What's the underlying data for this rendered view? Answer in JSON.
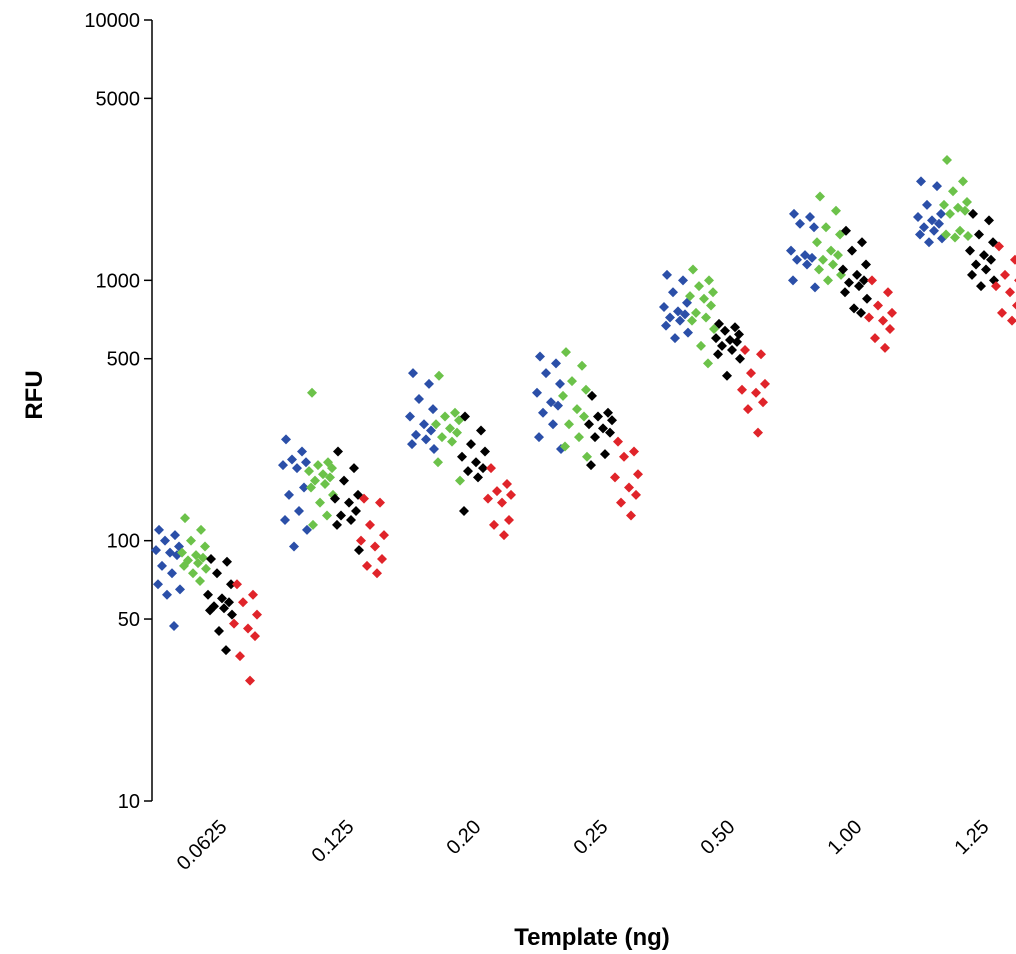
{
  "chart_data": {
    "type": "scatter",
    "title": "",
    "xlabel": "Template (ng)",
    "ylabel": "RFU",
    "yscale": "log",
    "ylim": [
      10,
      10000
    ],
    "yticks": [
      "10",
      "50",
      "100",
      "500",
      "1000",
      "5000",
      "10000"
    ],
    "categories": [
      "0.0625",
      "0.125",
      "0.20",
      "0.25",
      "0.50",
      "1.00",
      "1.25"
    ],
    "grid": false,
    "legend": "none",
    "marker": "diamond",
    "series": [
      {
        "color": "#2b4fa8",
        "values": [
          [
            110,
            105,
            100,
            95,
            92,
            90,
            88,
            80,
            75,
            68,
            65,
            62,
            47
          ],
          [
            245,
            220,
            205,
            200,
            195,
            190,
            160,
            150,
            130,
            120,
            110,
            95
          ],
          [
            440,
            400,
            350,
            320,
            300,
            280,
            265,
            255,
            245,
            235,
            225
          ],
          [
            510,
            480,
            440,
            400,
            370,
            340,
            330,
            310,
            280,
            250,
            225
          ],
          [
            1050,
            1000,
            900,
            820,
            790,
            760,
            740,
            720,
            700,
            670,
            630,
            600
          ],
          [
            1800,
            1750,
            1650,
            1600,
            1300,
            1250,
            1220,
            1200,
            1150,
            1000,
            940
          ],
          [
            2400,
            2300,
            1950,
            1800,
            1750,
            1700,
            1650,
            1600,
            1550,
            1500,
            1450,
            1400
          ]
        ]
      },
      {
        "color": "#6cc24a",
        "values": [
          [
            122,
            110,
            100,
            95,
            90,
            88,
            86,
            84,
            82,
            80,
            78,
            75,
            70
          ],
          [
            370,
            200,
            195,
            190,
            185,
            180,
            175,
            170,
            165,
            160,
            150,
            140,
            125,
            115
          ],
          [
            430,
            310,
            300,
            290,
            280,
            270,
            260,
            250,
            240,
            200,
            170
          ],
          [
            530,
            470,
            410,
            380,
            360,
            320,
            300,
            280,
            250,
            230,
            210
          ],
          [
            1100,
            1000,
            950,
            900,
            870,
            850,
            800,
            750,
            720,
            700,
            650,
            560,
            480
          ],
          [
            2100,
            1850,
            1600,
            1500,
            1400,
            1300,
            1250,
            1200,
            1150,
            1100,
            1050,
            1000
          ],
          [
            2900,
            2400,
            2200,
            2000,
            1950,
            1900,
            1850,
            1800,
            1550,
            1500,
            1480,
            1460
          ]
        ]
      },
      {
        "color": "#000000",
        "values": [
          [
            85,
            83,
            75,
            68,
            62,
            60,
            58,
            56,
            55,
            54,
            52,
            45,
            38
          ],
          [
            220,
            190,
            170,
            150,
            145,
            140,
            130,
            125,
            120,
            115,
            92
          ],
          [
            300,
            265,
            235,
            220,
            210,
            200,
            190,
            185,
            175,
            130
          ],
          [
            360,
            310,
            300,
            290,
            280,
            270,
            260,
            250,
            215,
            195
          ],
          [
            680,
            660,
            640,
            620,
            600,
            590,
            580,
            560,
            540,
            520,
            500,
            430
          ],
          [
            1550,
            1400,
            1300,
            1150,
            1100,
            1050,
            1000,
            980,
            950,
            900,
            850,
            780,
            750
          ],
          [
            1800,
            1700,
            1500,
            1400,
            1300,
            1250,
            1200,
            1150,
            1100,
            1050,
            1000,
            950
          ]
        ]
      },
      {
        "color": "#e0242a",
        "values": [
          [
            68,
            62,
            58,
            52,
            48,
            46,
            43,
            36,
            29
          ],
          [
            145,
            140,
            115,
            105,
            100,
            95,
            85,
            80,
            75
          ],
          [
            190,
            165,
            155,
            150,
            145,
            140,
            120,
            115,
            105
          ],
          [
            240,
            220,
            210,
            180,
            175,
            160,
            150,
            140,
            125
          ],
          [
            540,
            520,
            440,
            400,
            380,
            370,
            340,
            320,
            260
          ],
          [
            1000,
            900,
            800,
            750,
            720,
            700,
            650,
            600,
            550
          ],
          [
            1350,
            1200,
            1050,
            1000,
            950,
            900,
            800,
            750,
            700
          ]
        ]
      }
    ]
  }
}
